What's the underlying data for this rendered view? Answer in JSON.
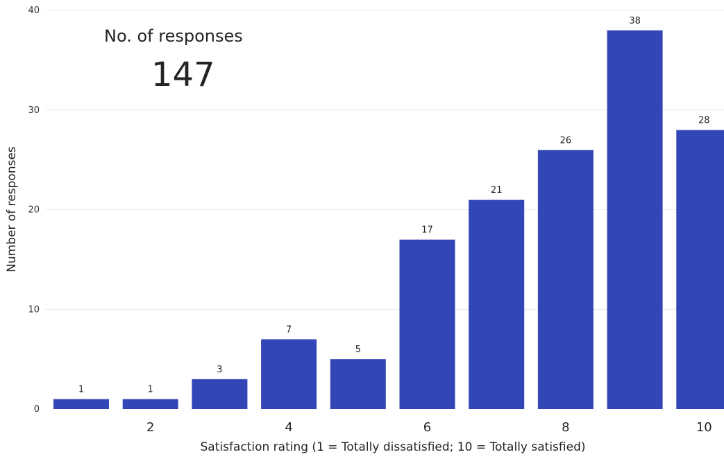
{
  "card": {
    "title": "No. of responses",
    "value": "147"
  },
  "chart_data": {
    "type": "bar",
    "categories": [
      1,
      2,
      3,
      4,
      5,
      6,
      7,
      8,
      9,
      10
    ],
    "values": [
      1,
      1,
      3,
      7,
      5,
      17,
      21,
      26,
      38,
      28
    ],
    "xlabel": "Satisfaction rating (1 = Totally dissatisfied; 10 = Totally satisfied)",
    "ylabel": "Number of responses",
    "ylim": [
      0,
      40
    ],
    "yticks": [
      0,
      10,
      20,
      30,
      40
    ],
    "xticks": [
      2,
      4,
      6,
      8,
      10
    ],
    "grid": true,
    "bar_color": "#3346B8",
    "data_labels": true
  }
}
